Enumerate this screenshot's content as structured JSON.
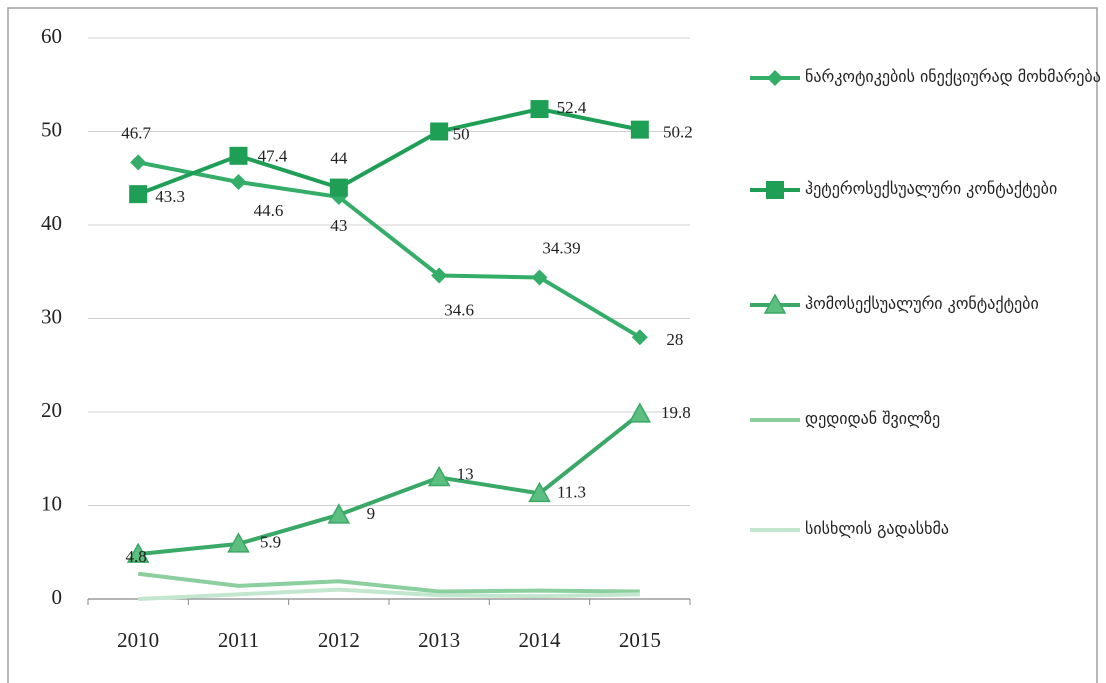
{
  "chart_data": {
    "type": "line",
    "categories": [
      "2010",
      "2011",
      "2012",
      "2013",
      "2014",
      "2015"
    ],
    "ylim": [
      0,
      60
    ],
    "yticks": [
      0,
      10,
      20,
      30,
      40,
      50,
      60
    ],
    "grid": true,
    "legend": "right",
    "series": [
      {
        "name": "ნარკოტიკების ინექციურად მოხმარება",
        "color": "#34ad68",
        "marker": "diamond",
        "values": [
          46.7,
          44.6,
          43,
          34.6,
          34.39,
          28
        ]
      },
      {
        "name": "ჰეტეროსექსუალური კონტაქტები",
        "color": "#1f9e55",
        "marker": "square",
        "values": [
          43.3,
          47.4,
          44,
          50,
          52.4,
          50.2
        ]
      },
      {
        "name": "ჰომოსექსუალური კონტაქტები",
        "color": "#3aa866",
        "marker": "triangle",
        "values": [
          4.8,
          5.9,
          9,
          13,
          11.3,
          19.8
        ]
      },
      {
        "name": "დედიდან შვილზე",
        "color": "#8ccf9f",
        "values": [
          2.7,
          1.4,
          1.9,
          0.8,
          0.9,
          0.8
        ]
      },
      {
        "name": "სისხლის გადასხმა",
        "color": "#c3e6ce",
        "values": [
          0,
          0.5,
          1,
          0.4,
          0.3,
          0.5
        ]
      }
    ]
  }
}
